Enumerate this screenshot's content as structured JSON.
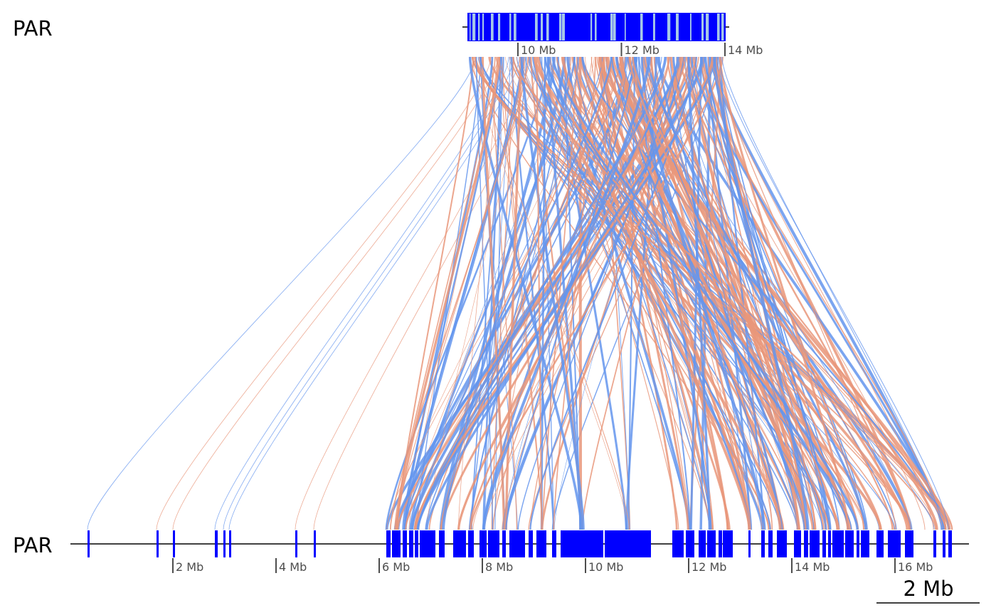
{
  "tracks": {
    "top": {
      "label": "PAR",
      "range_mb": [
        9.2,
        14.2
      ],
      "ticks": [
        {
          "mb": 10,
          "label": "10 Mb"
        },
        {
          "mb": 12,
          "label": "12 Mb"
        },
        {
          "mb": 14,
          "label": "14 Mb"
        }
      ]
    },
    "bottom": {
      "label": "PAR",
      "range_mb": [
        0.0,
        17.4
      ],
      "ticks": [
        {
          "mb": 2,
          "label": "2 Mb"
        },
        {
          "mb": 4,
          "label": "4 Mb"
        },
        {
          "mb": 6,
          "label": "6 Mb"
        },
        {
          "mb": 8,
          "label": "8 Mb"
        },
        {
          "mb": 10,
          "label": "10 Mb"
        },
        {
          "mb": 12,
          "label": "12 Mb"
        },
        {
          "mb": 14,
          "label": "14 Mb"
        },
        {
          "mb": 16,
          "label": "16 Mb"
        }
      ]
    }
  },
  "scale_bar": {
    "label": "2 Mb",
    "length_mb": 2
  },
  "colors": {
    "feature": "#0000ff",
    "feature_light": "#a6c8e8",
    "forward_link": "#6495ed",
    "reverse_link": "#e9967a",
    "axis": "#000000",
    "tick": "#4d4d4d"
  },
  "link_orientations": [
    "forward",
    "reverse"
  ]
}
